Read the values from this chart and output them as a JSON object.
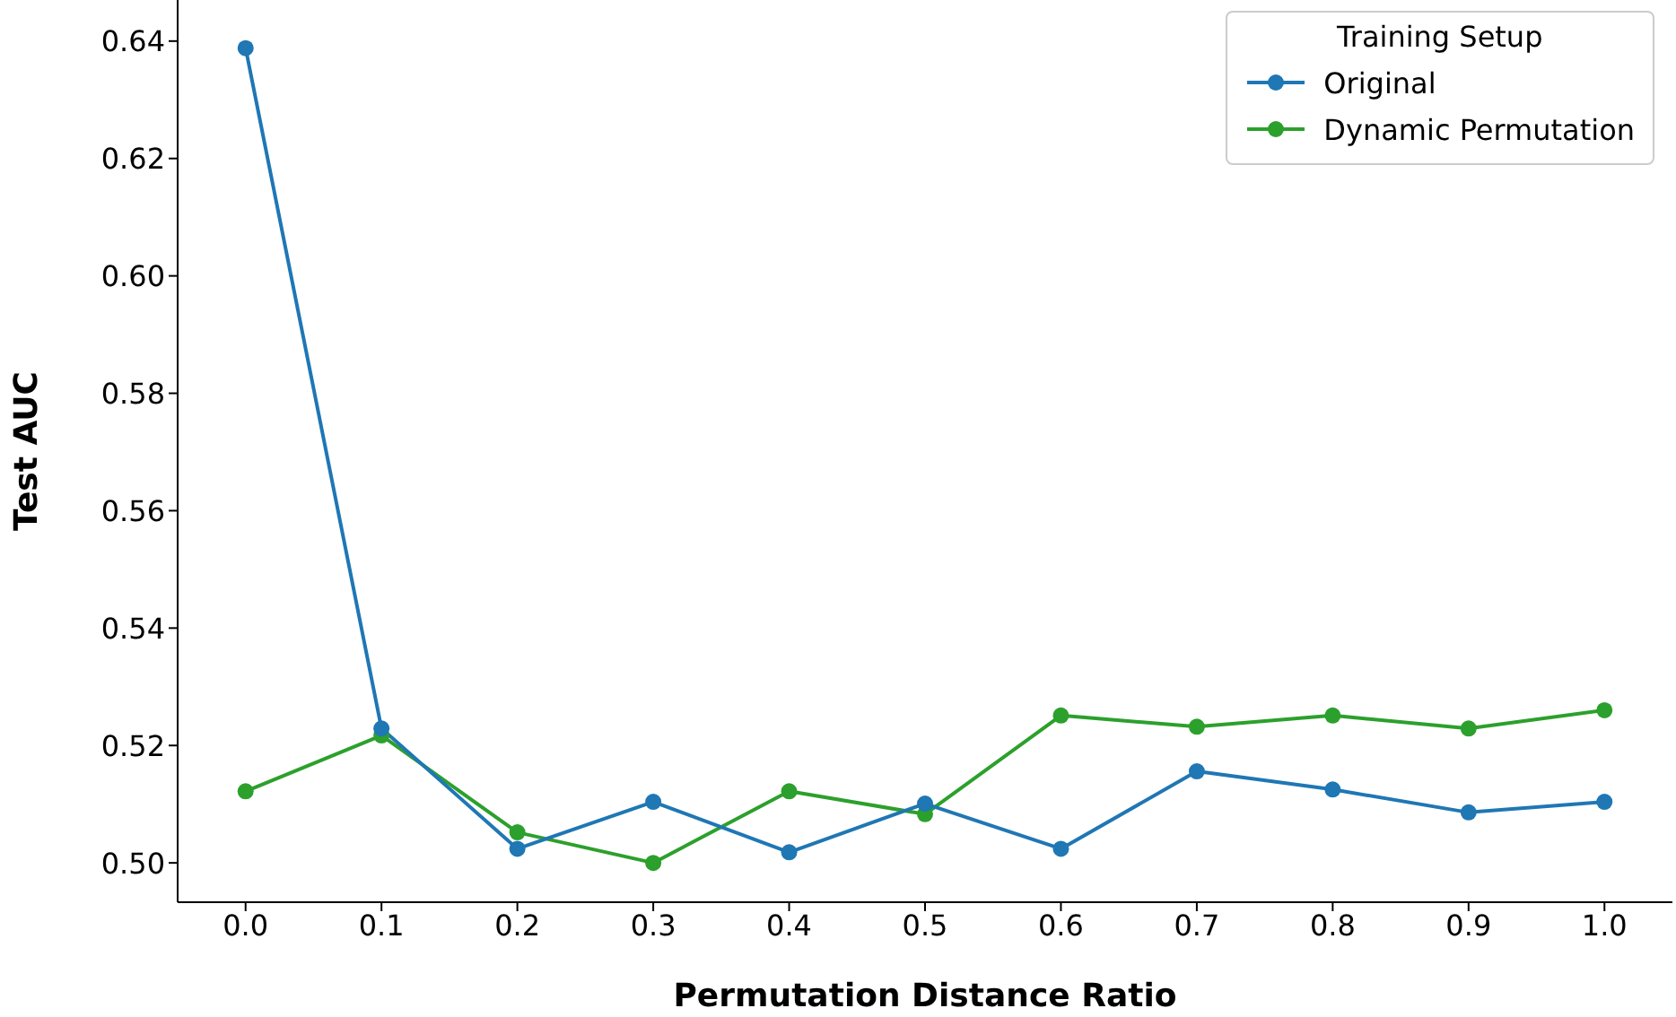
{
  "chart_data": {
    "type": "line",
    "xlabel": "Permutation Distance Ratio",
    "ylabel": "Test AUC",
    "legend_title": "Training Setup",
    "legend": "top right",
    "marker": "circle",
    "line_style": "solid",
    "grid": false,
    "x": [
      0.0,
      0.1,
      0.2,
      0.3,
      0.4,
      0.5,
      0.6,
      0.7,
      0.8,
      0.9,
      1.0
    ],
    "xlim": [
      -0.05,
      1.05
    ],
    "xticks": [
      {
        "value": 0,
        "label": "0.0"
      },
      {
        "value": 0.1,
        "label": "0.1"
      },
      {
        "value": 0.2,
        "label": "0.2"
      },
      {
        "value": 0.3,
        "label": "0.3"
      },
      {
        "value": 0.4,
        "label": "0.4"
      },
      {
        "value": 0.5,
        "label": "0.5"
      },
      {
        "value": 0.6,
        "label": "0.6"
      },
      {
        "value": 0.7,
        "label": "0.7"
      },
      {
        "value": 0.8,
        "label": "0.8"
      },
      {
        "value": 0.9,
        "label": "0.9"
      },
      {
        "value": 1,
        "label": "1.0"
      }
    ],
    "ylim": [
      0.4933,
      0.647
    ],
    "yticks": [
      {
        "value": 0.5,
        "label": "0.50"
      },
      {
        "value": 0.52,
        "label": "0.52"
      },
      {
        "value": 0.54,
        "label": "0.54"
      },
      {
        "value": 0.56,
        "label": "0.56"
      },
      {
        "value": 0.58,
        "label": "0.58"
      },
      {
        "value": 0.6,
        "label": "0.60"
      },
      {
        "value": 0.62,
        "label": "0.62"
      },
      {
        "value": 0.64,
        "label": "0.64"
      }
    ],
    "series": [
      {
        "name": "Original",
        "color": "#1f77b4",
        "values": [
          0.6388,
          0.5229,
          0.5024,
          0.5104,
          0.5018,
          0.5101,
          0.5024,
          0.5156,
          0.5125,
          0.5086,
          0.5104
        ]
      },
      {
        "name": "Dynamic Permutation",
        "color": "#2ca02c",
        "values": [
          0.5122,
          0.5217,
          0.5052,
          0.5,
          0.5122,
          0.5083,
          0.5251,
          0.5232,
          0.5251,
          0.5229,
          0.526
        ]
      }
    ]
  }
}
